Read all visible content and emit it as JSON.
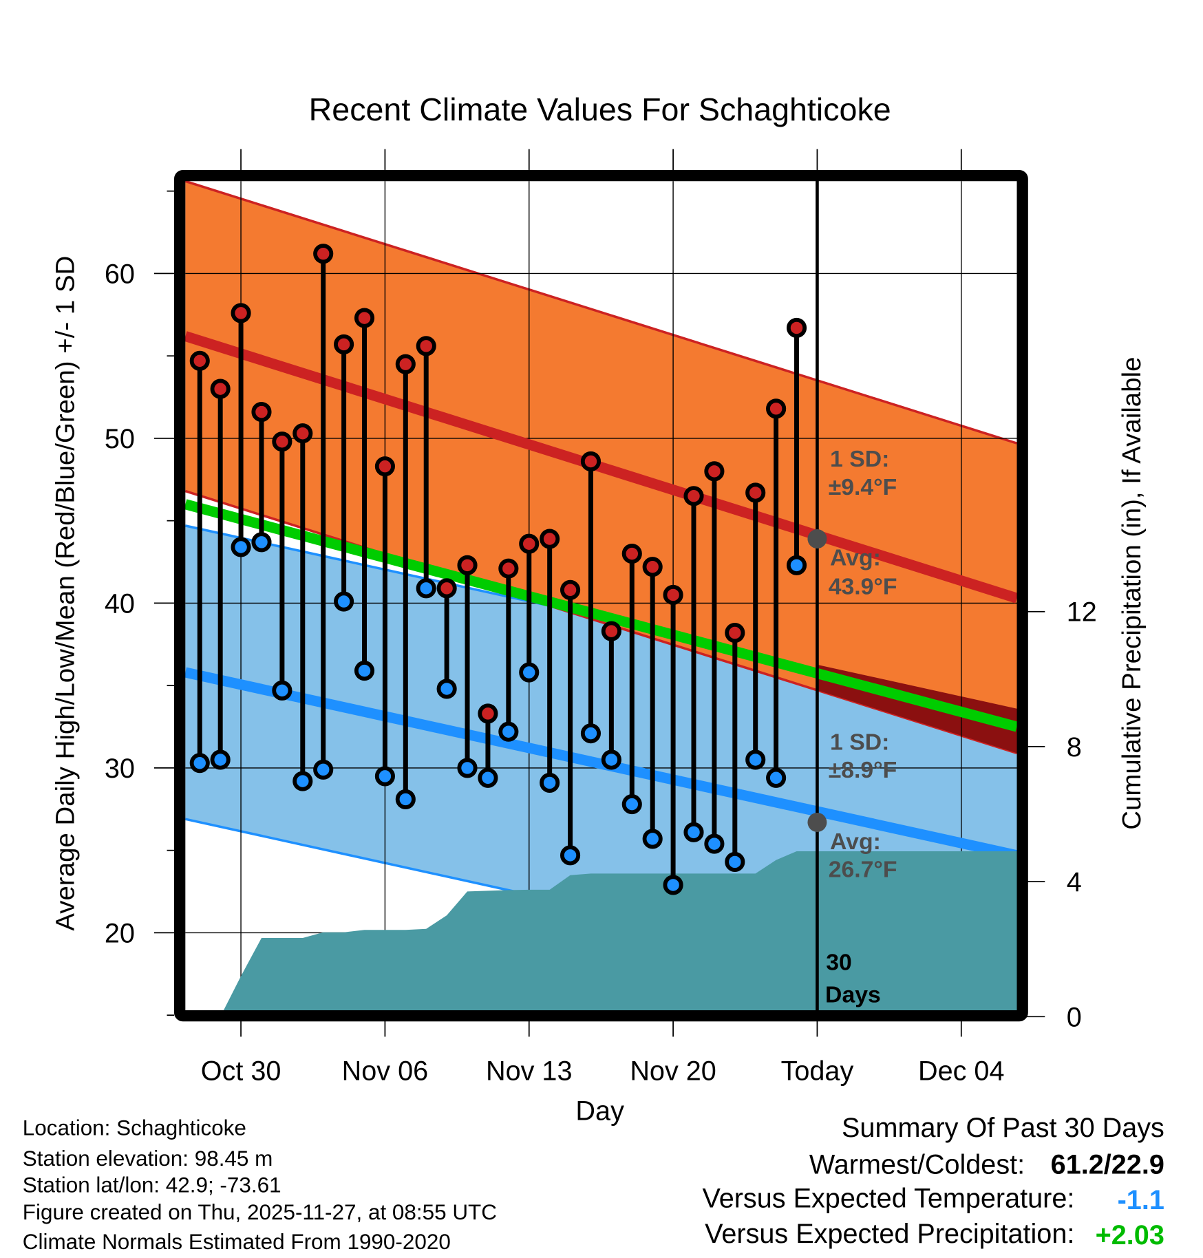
{
  "chart_data": {
    "type": "line",
    "title": "Recent Climate Values For Schaghticoke",
    "xlabel": "Day",
    "ylabel": "Average Daily High/Low/Mean (Red/Blue/Green) +/- 1 SD",
    "y2label": "Cumulative Precipitation (in), If Available",
    "x_tick_labels": [
      "Oct 30",
      "Nov 06",
      "Nov 13",
      "Nov 20",
      "Today",
      "Dec 04"
    ],
    "x_tick_days": [
      2,
      9,
      16,
      23,
      30,
      37
    ],
    "xlim_days": [
      -0.7,
      39.7
    ],
    "ylim": [
      15.3,
      65.6
    ],
    "y_ticks": [
      20,
      30,
      40,
      50,
      60
    ],
    "y_tick_labels": [
      "20",
      "30",
      "40",
      "50",
      "60"
    ],
    "y2lim": [
      0,
      11.8
    ],
    "y2_ticks": [
      0,
      4,
      8,
      12
    ],
    "y2_tick_labels": [
      "0",
      "4",
      "8",
      "12"
    ],
    "dates": [
      "Oct 28",
      "Oct 29",
      "Oct 30",
      "Oct 31",
      "Nov 01",
      "Nov 02",
      "Nov 03",
      "Nov 04",
      "Nov 05",
      "Nov 06",
      "Nov 07",
      "Nov 08",
      "Nov 09",
      "Nov 10",
      "Nov 11",
      "Nov 12",
      "Nov 13",
      "Nov 14",
      "Nov 15",
      "Nov 16",
      "Nov 17",
      "Nov 18",
      "Nov 19",
      "Nov 20",
      "Nov 21",
      "Nov 22",
      "Nov 23",
      "Nov 24",
      "Nov 25",
      "Nov 26"
    ],
    "highs": [
      54.7,
      53.0,
      57.6,
      51.6,
      49.8,
      50.3,
      61.2,
      55.7,
      57.3,
      48.3,
      54.5,
      55.6,
      40.9,
      42.3,
      33.3,
      42.1,
      43.6,
      43.9,
      40.8,
      48.6,
      38.3,
      43.0,
      42.2,
      40.5,
      46.5,
      48.0,
      38.2,
      46.7,
      51.8,
      56.7
    ],
    "lows": [
      30.3,
      30.5,
      43.4,
      43.7,
      34.7,
      29.2,
      29.9,
      40.1,
      35.9,
      29.5,
      28.1,
      40.9,
      34.8,
      30.0,
      29.4,
      32.2,
      35.8,
      29.1,
      24.7,
      32.1,
      30.5,
      27.8,
      25.7,
      22.9,
      26.1,
      25.4,
      24.3,
      30.5,
      29.4,
      42.3
    ],
    "cumulative_precip": [
      0,
      0,
      1.2,
      2.33,
      2.33,
      2.33,
      2.5,
      2.5,
      2.57,
      2.57,
      2.57,
      2.6,
      3.0,
      3.71,
      3.73,
      3.75,
      3.76,
      3.76,
      4.19,
      4.24,
      4.24,
      4.24,
      4.24,
      4.24,
      4.24,
      4.24,
      4.24,
      4.24,
      4.64,
      4.9
    ],
    "normal_high": {
      "start": 56.2,
      "end": 40.3,
      "sd": 9.4
    },
    "normal_low": {
      "start": 35.8,
      "end": 24.7,
      "sd": 8.9
    },
    "today_day": 30,
    "today_high_avg": 43.9,
    "today_low_avg": 26.7,
    "annotations": {
      "hi_sd": "1 SD:",
      "hi_sd_val": "±9.4°F",
      "hi_avg": "Avg:",
      "hi_avg_val": "43.9°F",
      "lo_sd": "1 SD:",
      "lo_sd_val": "±8.9°F",
      "lo_avg": "Avg:",
      "lo_avg_val": "26.7°F",
      "days_num": "30",
      "days_word": "Days"
    },
    "colors": {
      "high_band": "#f47a30",
      "high_line": "#cc2222",
      "low_band": "#85c1e9",
      "low_line": "#1e90ff",
      "mean_line": "#00cc00",
      "precip": "#4a9aa3",
      "overlap": "#8b1010",
      "high_dot": "#cc2222",
      "low_dot": "#1e90ff"
    }
  },
  "footer": {
    "location": "Location: Schaghticoke",
    "elevation": "Station elevation: 98.45 m",
    "latlon": "Station lat/lon: 42.9; -73.61",
    "created": "Figure created on Thu, 2025-11-27, at 08:55 UTC",
    "normals": "Climate Normals Estimated From 1990-2020"
  },
  "summary": {
    "title": "Summary Of Past 30 Days",
    "warm_cold_label": "Warmest/Coldest:",
    "warm_cold_value": "61.2/22.9",
    "temp_label": "Versus Expected Temperature:",
    "temp_value": "-1.1",
    "precip_label": "Versus Expected Precipitation:",
    "precip_value": "+2.03"
  }
}
